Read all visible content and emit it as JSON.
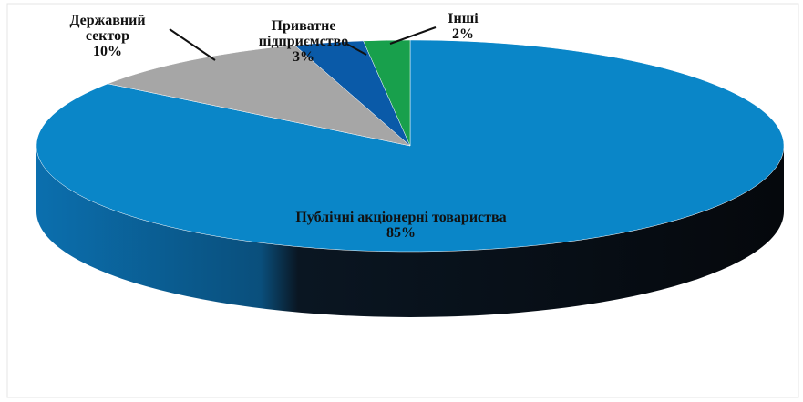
{
  "chart_data": {
    "type": "pie",
    "categories": [
      "Публічні акціонерні товариства",
      "Державний сектор",
      "Приватне підприємство",
      "Інші"
    ],
    "values": [
      85,
      10,
      3,
      2
    ],
    "value_labels": [
      "85%",
      "10%",
      "3%",
      "2%"
    ],
    "colors": [
      "#0a86c8",
      "#a6a6a6",
      "#0a5aa8",
      "#18a04c"
    ]
  }
}
